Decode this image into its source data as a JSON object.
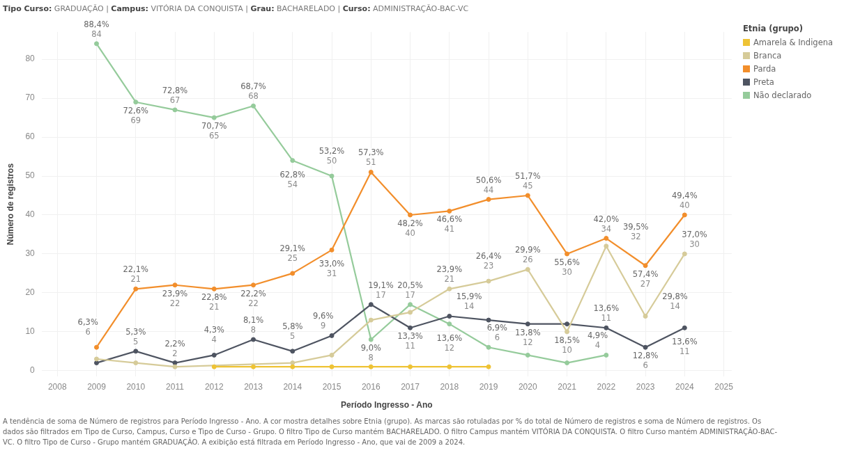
{
  "chart_data": {
    "type": "line",
    "title": "Tipo Curso: GRADUAÇÃO | Campus: VITÓRIA DA CONQUISTA | Grau: BACHARELADO | Curso: ADMINISTRAÇÃO-BAC-VC",
    "xlabel": "Período Ingresso - Ano",
    "ylabel": "Número de registros",
    "legend_title": "Etnia (grupo)",
    "legend": "top right",
    "grid": true,
    "marker": "circle",
    "line_style": "solid",
    "x": [
      2009,
      2010,
      2011,
      2012,
      2013,
      2014,
      2015,
      2016,
      2017,
      2018,
      2019,
      2020,
      2021,
      2022,
      2023,
      2024
    ],
    "xlim": [
      2007.6,
      2025.2
    ],
    "xticks": [
      2008,
      2009,
      2010,
      2011,
      2012,
      2013,
      2014,
      2015,
      2016,
      2017,
      2018,
      2019,
      2020,
      2021,
      2022,
      2023,
      2024,
      2025
    ],
    "ylim": [
      -1.5,
      87
    ],
    "yticks": [
      0,
      10,
      20,
      30,
      40,
      50,
      60,
      70,
      80
    ],
    "series": [
      {
        "name": "Amarela & Indigena",
        "color": "#eec335",
        "values": [
          null,
          null,
          null,
          1,
          1,
          1,
          1,
          1,
          1,
          1,
          1,
          null,
          null,
          null,
          null,
          null
        ]
      },
      {
        "name": "Branca",
        "color": "#d6cb99",
        "values": [
          3,
          2,
          1,
          null,
          null,
          2,
          4,
          13,
          15,
          21,
          23,
          26,
          10,
          32,
          14,
          30
        ],
        "value_labels": [
          null,
          null,
          null,
          null,
          null,
          null,
          null,
          null,
          null,
          "23,9%\n21",
          "26,4%\n23",
          "29,9%\n26",
          "18,5%\n10",
          "39,5%\n32",
          "29,8%\n14",
          "37,0%\n30"
        ]
      },
      {
        "name": "Parda",
        "color": "#f28e2b",
        "values": [
          6,
          21,
          22,
          21,
          22,
          25,
          31,
          51,
          40,
          41,
          44,
          45,
          30,
          34,
          27,
          40
        ],
        "value_labels": [
          "6,3%\n6",
          "22,1%\n21",
          "23,9%\n22",
          "22,8%\n21",
          "22,2%\n22",
          "29,1%\n25",
          "33,0%\n31",
          "57,3%\n51",
          "48,2%\n40",
          "46,6%\n41",
          "50,6%\n44",
          "51,7%\n45",
          "55,6%\n30",
          "42,0%\n34",
          "57,4%\n27",
          "49,4%\n40"
        ]
      },
      {
        "name": "Preta",
        "color": "#4e5461",
        "values": [
          2,
          5,
          2,
          4,
          8,
          5,
          9,
          17,
          11,
          14,
          13,
          12,
          12,
          11,
          6,
          11
        ],
        "value_labels": [
          null,
          "5,3%\n5",
          "2,2%\n2",
          "4,3%\n4",
          "8,1%\n8",
          "5,8%\n5",
          "9,6%\n9",
          "19,1%\n17",
          "13,3%\n11",
          "15,9%\n14",
          null,
          "13,8%\n12",
          null,
          "13,6%\n11",
          "12,8%\n6",
          "13,6%\n11"
        ]
      },
      {
        "name": "Não declarado",
        "color": "#95cb9b",
        "values": [
          84,
          69,
          67,
          65,
          68,
          54,
          50,
          8,
          17,
          12,
          6,
          4,
          2,
          4,
          null,
          null
        ],
        "value_labels": [
          "88,4%\n84",
          "72,6%\n69",
          "72,8%\n67",
          "70,7%\n65",
          "68,7%\n68",
          "62,8%\n54",
          "53,2%\n50",
          "9,0%\n8",
          "20,5%\n17",
          "13,6%\n12",
          "6,9%\n6",
          null,
          null,
          "4,9%\n4",
          null,
          null
        ]
      }
    ],
    "annotations": [
      "A tendência de soma de Número de registros para Período Ingresso - Ano.  A cor mostra detalhes sobre Etnia (grupo).  As marcas são rotuladas por % do total de Número de registros e soma de Número de registros. Os dados são filtrados em Tipo de Curso, Campus, Curso e Tipo de Curso - Grupo. O filtro Tipo de Curso mantém BACHARELADO. O filtro Campus mantém VITÓRIA DA CONQUISTA. O filtro Curso mantém ADMINISTRAÇÃO-BAC-VC. O filtro Tipo de Curso - Grupo mantém GRADUAÇÃO. A exibição está filtrada em Período Ingresso - Ano, que vai de 2009 a 2024."
    ]
  }
}
